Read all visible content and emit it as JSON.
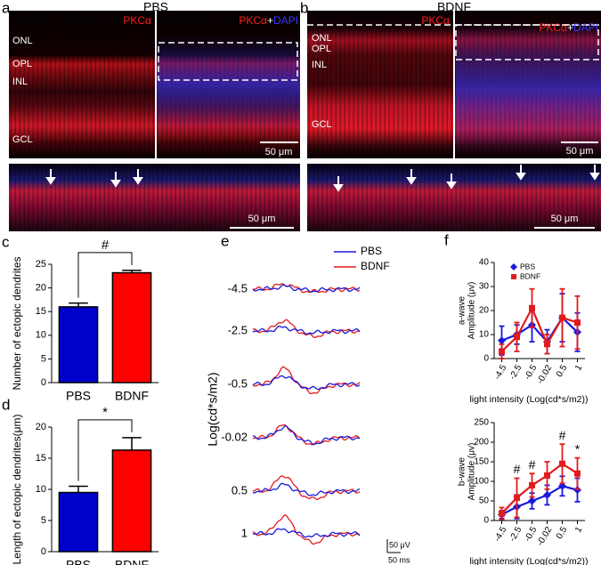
{
  "images": {
    "a": {
      "letter": "a",
      "title": "PBS",
      "label_left": "PKCα",
      "label_right": [
        "PKCα",
        "+",
        "DAPI"
      ],
      "layers": [
        "ONL",
        "OPL",
        "INL",
        "GCL"
      ],
      "scale": "50 μm",
      "zoom_scale": "50 μm"
    },
    "b": {
      "letter": "b",
      "title": "BDNF",
      "label_left": "PKCα",
      "label_right": [
        "PKCα",
        "+",
        "DAPI"
      ],
      "layers": [
        "ONL",
        "OPL",
        "INL",
        "GCL"
      ],
      "scale": "50 μm",
      "zoom_scale": "50 μm"
    }
  },
  "traces": {
    "letter": "e",
    "legend": [
      "PBS",
      "BDNF"
    ],
    "colors": [
      "#1a1adb",
      "#e31a1c"
    ],
    "ylabel": "Log(cd*s/m2)",
    "rows": [
      "-4.5",
      "-2.5",
      "-0.5",
      "-0.02",
      "0.5",
      "1"
    ],
    "scale_v": "50 μV",
    "scale_t": "50 ms"
  },
  "chart_data": [
    {
      "type": "bar",
      "letter": "c",
      "ylabel": "Number of ectopic dendrites",
      "categories": [
        "PBS",
        "BDNF"
      ],
      "values": [
        16,
        23.2
      ],
      "errors": [
        0.8,
        0.5
      ],
      "colors": [
        "#0000cc",
        "#ff0000"
      ],
      "ylim": [
        0,
        25
      ],
      "yticks": [
        0,
        5,
        10,
        15,
        20,
        25
      ],
      "annotation": "#"
    },
    {
      "type": "bar",
      "letter": "d",
      "ylabel": "Length of ectopic dendrites(μm)",
      "categories": [
        "PBS",
        "BDNF"
      ],
      "values": [
        9.5,
        16.3
      ],
      "errors": [
        1,
        2
      ],
      "colors": [
        "#0000cc",
        "#ff0000"
      ],
      "ylim": [
        0,
        20
      ],
      "yticks": [
        0,
        5,
        10,
        15,
        20
      ],
      "annotation": "*"
    },
    {
      "type": "line",
      "letter": "f",
      "ylabel": [
        "a-wave",
        "Amplitude (μv)"
      ],
      "xlabel": "light intensity (Log(cd*s/m2))",
      "categories": [
        "-4.5",
        "-2.5",
        "-0.5",
        "-0.02",
        "0.5",
        "1"
      ],
      "legend": true,
      "series": [
        {
          "name": "PBS",
          "color": "#1a1adb",
          "marker": "diamond",
          "values": [
            7.5,
            10,
            14,
            7,
            17,
            11
          ],
          "errors": [
            6,
            4,
            7,
            5,
            10,
            8
          ]
        },
        {
          "name": "BDNF",
          "color": "#e31a1c",
          "marker": "square",
          "values": [
            3,
            9,
            21,
            6,
            17,
            15
          ],
          "errors": [
            3,
            6,
            8,
            4,
            12,
            11
          ]
        }
      ],
      "ylim": [
        0,
        40
      ],
      "yticks": [
        0,
        10,
        20,
        30,
        40
      ]
    },
    {
      "type": "line",
      "ylabel": [
        "b-wave",
        "Amplitude (μv)"
      ],
      "xlabel": "light intensity (Log(cd*s/m2))",
      "categories": [
        "-4.5",
        "-2.5",
        "-0.5",
        "-0.02",
        "0.5",
        "1"
      ],
      "legend": false,
      "series": [
        {
          "name": "PBS",
          "color": "#1a1adb",
          "marker": "diamond",
          "values": [
            15,
            35,
            50,
            65,
            88,
            78
          ],
          "errors": [
            10,
            30,
            20,
            25,
            25,
            30
          ]
        },
        {
          "name": "BDNF",
          "color": "#e31a1c",
          "marker": "square",
          "values": [
            18,
            58,
            90,
            115,
            145,
            120
          ],
          "errors": [
            15,
            50,
            30,
            35,
            50,
            40
          ]
        }
      ],
      "annotations": [
        null,
        "#",
        "#",
        null,
        "#",
        "*"
      ],
      "ylim": [
        0,
        250
      ],
      "yticks": [
        0,
        50,
        100,
        150,
        200,
        250
      ]
    }
  ]
}
